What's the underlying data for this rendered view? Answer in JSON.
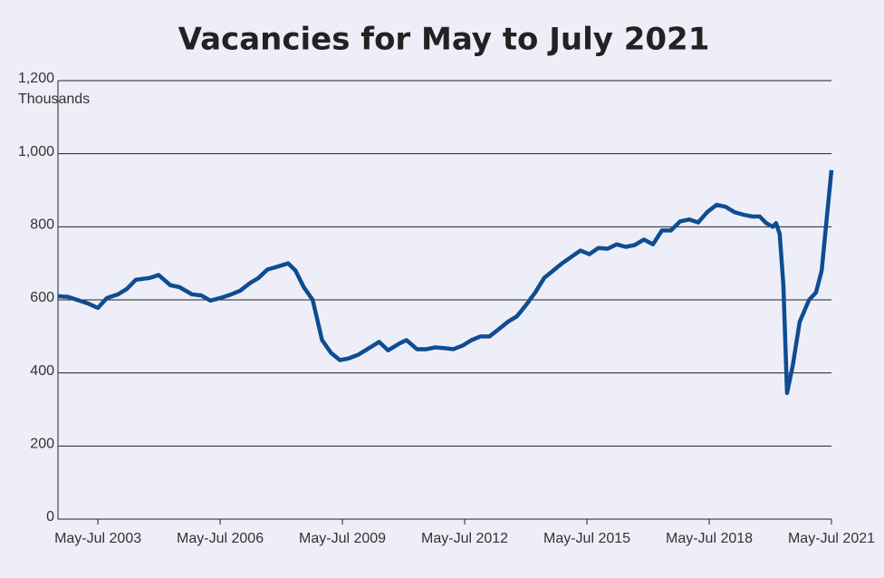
{
  "chart_data": {
    "type": "line",
    "title": "Vacancies for May to July 2021",
    "y_label": "Thousands",
    "x": [
      2002.52,
      2002.77,
      2002.99,
      2003.26,
      2003.5,
      2003.72,
      2003.99,
      2004.21,
      2004.43,
      2004.77,
      2004.99,
      2005.28,
      2005.5,
      2005.81,
      2006.04,
      2006.26,
      2006.5,
      2006.77,
      2006.99,
      2007.22,
      2007.44,
      2007.66,
      2007.88,
      2008.17,
      2008.35,
      2008.55,
      2008.77,
      2009.0,
      2009.22,
      2009.44,
      2009.66,
      2009.89,
      2010.11,
      2010.4,
      2010.62,
      2010.89,
      2011.07,
      2011.33,
      2011.56,
      2011.78,
      2012.0,
      2012.22,
      2012.45,
      2012.67,
      2012.89,
      2013.11,
      2013.34,
      2013.56,
      2013.78,
      2014.0,
      2014.23,
      2014.45,
      2014.67,
      2014.89,
      2015.12,
      2015.34,
      2015.56,
      2015.78,
      2016.01,
      2016.23,
      2016.45,
      2016.67,
      2016.9,
      2017.12,
      2017.34,
      2017.56,
      2017.79,
      2018.01,
      2018.23,
      2018.45,
      2018.68,
      2018.9,
      2019.12,
      2019.34,
      2019.57,
      2019.74,
      2019.9,
      2020.06,
      2020.14,
      2020.23,
      2020.32,
      2020.41,
      2020.55,
      2020.72,
      2020.95,
      2021.12,
      2021.26,
      2021.39,
      2021.5
    ],
    "series": [
      {
        "name": "Vacancies",
        "color": "#0f4c92",
        "values": [
          610,
          608,
          600,
          590,
          578,
          605,
          615,
          630,
          655,
          660,
          668,
          640,
          635,
          615,
          612,
          598,
          605,
          615,
          625,
          645,
          660,
          683,
          690,
          700,
          680,
          635,
          600,
          490,
          455,
          435,
          440,
          450,
          465,
          485,
          462,
          480,
          490,
          465,
          465,
          470,
          468,
          465,
          475,
          490,
          500,
          500,
          520,
          540,
          555,
          585,
          620,
          660,
          680,
          700,
          718,
          735,
          725,
          742,
          740,
          752,
          745,
          750,
          765,
          752,
          790,
          790,
          815,
          820,
          812,
          840,
          860,
          855,
          840,
          833,
          828,
          828,
          810,
          800,
          810,
          780,
          640,
          345,
          420,
          540,
          600,
          620,
          680,
          830,
          955
        ]
      }
    ],
    "xlim": [
      2002.52,
      2021.5
    ],
    "xticks": [
      {
        "value": 2003.5,
        "label": "May-Jul 2003"
      },
      {
        "value": 2006.5,
        "label": "May-Jul 2006"
      },
      {
        "value": 2009.5,
        "label": "May-Jul 2009"
      },
      {
        "value": 2012.5,
        "label": "May-Jul 2012"
      },
      {
        "value": 2015.5,
        "label": "May-Jul 2015"
      },
      {
        "value": 2018.5,
        "label": "May-Jul 2018"
      },
      {
        "value": 2021.5,
        "label": "May-Jul 2021"
      }
    ],
    "ylim": [
      0,
      1200
    ],
    "yticks": [
      0,
      200,
      400,
      600,
      800,
      {
        "value": 1000,
        "label": "1,000"
      },
      {
        "value": 1200,
        "label": "1,200"
      }
    ],
    "grid": true
  }
}
